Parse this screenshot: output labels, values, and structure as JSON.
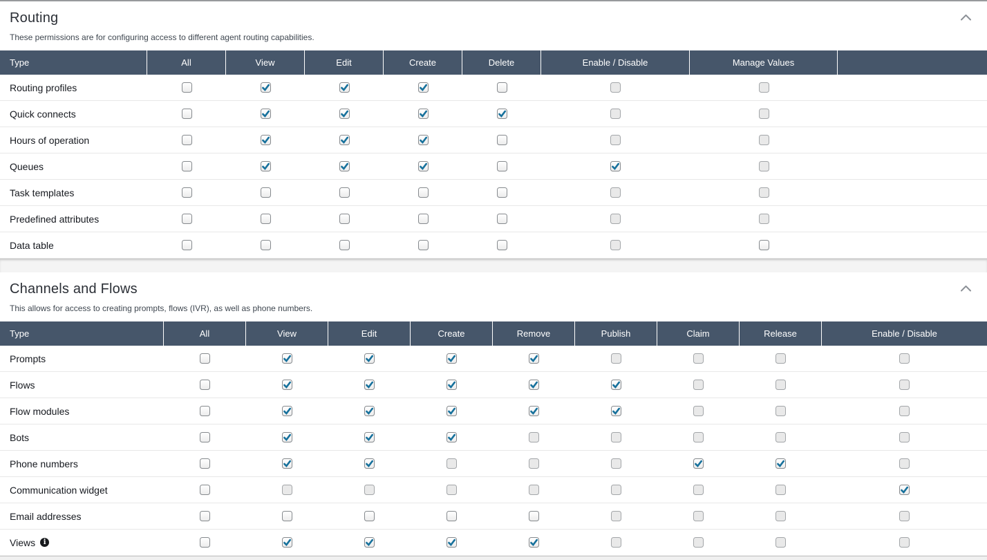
{
  "colors": {
    "header_bg": "#46566a",
    "header_text": "#ffffff",
    "check": "#17719c",
    "chevron": "#8b9096",
    "row_border": "#e8e8e8",
    "disabled_fill": "#e9e9e9"
  },
  "icons": {
    "collapse": "chevron-up-icon",
    "info_glyph": "i"
  },
  "sections": [
    {
      "title": "Routing",
      "description": "These permissions are for configuring access to different agent routing capabilities.",
      "columns": [
        "Type",
        "All",
        "View",
        "Edit",
        "Create",
        "Delete",
        "Enable / Disable",
        "Manage Values",
        ""
      ],
      "rows": [
        {
          "label": "Routing profiles",
          "cells": [
            "unchecked",
            "checked",
            "checked",
            "checked",
            "unchecked",
            "disabled",
            "disabled"
          ]
        },
        {
          "label": "Quick connects",
          "cells": [
            "unchecked",
            "checked",
            "checked",
            "checked",
            "checked",
            "disabled",
            "disabled"
          ]
        },
        {
          "label": "Hours of operation",
          "cells": [
            "unchecked",
            "checked",
            "checked",
            "checked",
            "unchecked",
            "disabled",
            "disabled"
          ]
        },
        {
          "label": "Queues",
          "cells": [
            "unchecked",
            "checked",
            "checked",
            "checked",
            "unchecked",
            "checked",
            "disabled"
          ]
        },
        {
          "label": "Task templates",
          "cells": [
            "unchecked",
            "unchecked",
            "unchecked",
            "unchecked",
            "unchecked",
            "disabled",
            "disabled"
          ]
        },
        {
          "label": "Predefined attributes",
          "cells": [
            "unchecked",
            "unchecked",
            "unchecked",
            "unchecked",
            "unchecked",
            "disabled",
            "disabled"
          ]
        },
        {
          "label": "Data table",
          "cells": [
            "unchecked",
            "unchecked",
            "unchecked",
            "unchecked",
            "unchecked",
            "disabled",
            "unchecked"
          ]
        }
      ]
    },
    {
      "title": "Channels and Flows",
      "description": "This allows for access to creating prompts, flows (IVR), as well as phone numbers.",
      "columns": [
        "Type",
        "All",
        "View",
        "Edit",
        "Create",
        "Remove",
        "Publish",
        "Claim",
        "Release",
        "Enable / Disable"
      ],
      "rows": [
        {
          "label": "Prompts",
          "cells": [
            "unchecked",
            "checked",
            "checked",
            "checked",
            "checked",
            "disabled",
            "disabled",
            "disabled",
            "disabled"
          ]
        },
        {
          "label": "Flows",
          "cells": [
            "unchecked",
            "checked",
            "checked",
            "checked",
            "checked",
            "checked",
            "disabled",
            "disabled",
            "disabled"
          ]
        },
        {
          "label": "Flow modules",
          "cells": [
            "unchecked",
            "checked",
            "checked",
            "checked",
            "checked",
            "checked",
            "disabled",
            "disabled",
            "disabled"
          ]
        },
        {
          "label": "Bots",
          "cells": [
            "unchecked",
            "checked",
            "checked",
            "checked",
            "disabled",
            "disabled",
            "disabled",
            "disabled",
            "disabled"
          ]
        },
        {
          "label": "Phone numbers",
          "cells": [
            "unchecked",
            "checked",
            "checked",
            "disabled",
            "disabled",
            "disabled",
            "checked",
            "checked",
            "disabled"
          ]
        },
        {
          "label": "Communication widget",
          "cells": [
            "unchecked",
            "disabled",
            "disabled",
            "disabled",
            "disabled",
            "disabled",
            "disabled",
            "disabled",
            "checked"
          ]
        },
        {
          "label": "Email addresses",
          "cells": [
            "unchecked",
            "unchecked",
            "unchecked",
            "unchecked",
            "unchecked",
            "disabled",
            "disabled",
            "disabled",
            "disabled"
          ]
        },
        {
          "label": "Views",
          "info": true,
          "cells": [
            "unchecked",
            "checked",
            "checked",
            "checked",
            "checked",
            "disabled",
            "disabled",
            "disabled",
            "disabled"
          ]
        }
      ]
    }
  ]
}
